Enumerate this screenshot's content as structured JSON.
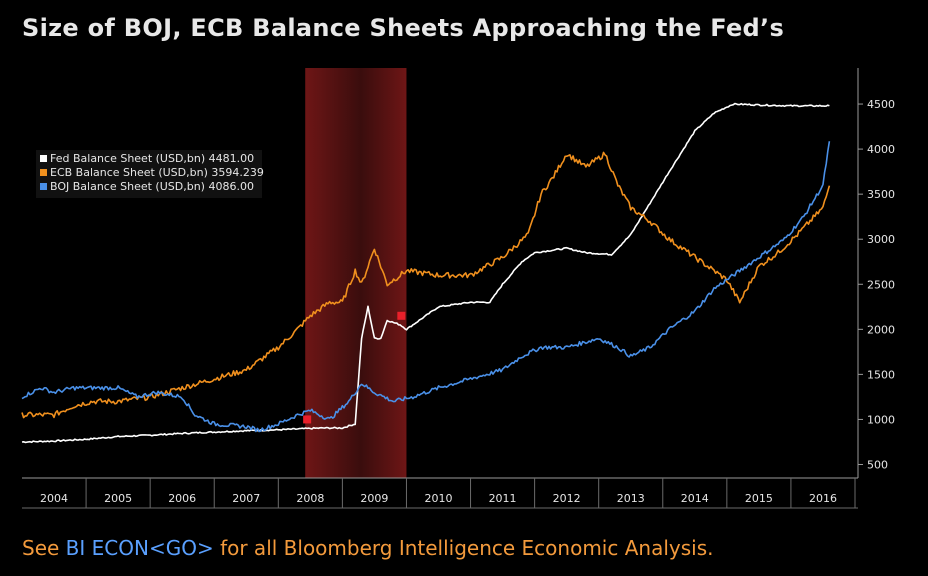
{
  "title": "Size of BOJ, ECB Balance Sheets Approaching the Fed’s",
  "footer": {
    "prefix": "See ",
    "command": "BI ECON<GO>",
    "suffix": " for all Bloomberg Intelligence Economic Analysis."
  },
  "colors": {
    "background": "#000000",
    "fed": "#ffffff",
    "ecb": "#f0901e",
    "boj": "#4a90e8",
    "recession": "#7a1a1a",
    "marker": "#e8202a"
  },
  "chart_data": {
    "type": "line",
    "x_tick_labels": [
      "2004",
      "2005",
      "2006",
      "2007",
      "2008",
      "2009",
      "2010",
      "2011",
      "2012",
      "2013",
      "2014",
      "2015",
      "2016"
    ],
    "y_ticks": [
      500,
      1000,
      1500,
      2000,
      2500,
      3000,
      3500,
      4000,
      4500
    ],
    "ylim": [
      350,
      4900
    ],
    "xlim": [
      2003.5,
      2016.5
    ],
    "shaded_region": [
      2007.92,
      2009.5
    ],
    "markers": [
      [
        2007.95,
        1000
      ],
      [
        2009.42,
        2150
      ]
    ],
    "legend_position": "top-left",
    "series": [
      {
        "name": "Fed Balance Sheet (USD,bn)",
        "last_value": "4481.00",
        "color": "#ffffff",
        "points": [
          [
            2003.5,
            750
          ],
          [
            2004,
            760
          ],
          [
            2004.5,
            780
          ],
          [
            2005,
            810
          ],
          [
            2005.5,
            825
          ],
          [
            2006,
            845
          ],
          [
            2006.5,
            860
          ],
          [
            2007,
            875
          ],
          [
            2007.5,
            885
          ],
          [
            2008,
            900
          ],
          [
            2008.2,
            905
          ],
          [
            2008.5,
            905
          ],
          [
            2008.7,
            950
          ],
          [
            2008.8,
            1900
          ],
          [
            2008.9,
            2250
          ],
          [
            2009.0,
            1900
          ],
          [
            2009.1,
            1900
          ],
          [
            2009.2,
            2100
          ],
          [
            2009.4,
            2050
          ],
          [
            2009.5,
            2000
          ],
          [
            2009.8,
            2150
          ],
          [
            2010,
            2250
          ],
          [
            2010.5,
            2300
          ],
          [
            2010.8,
            2300
          ],
          [
            2011,
            2500
          ],
          [
            2011.3,
            2750
          ],
          [
            2011.5,
            2850
          ],
          [
            2012,
            2900
          ],
          [
            2012.3,
            2850
          ],
          [
            2012.7,
            2830
          ],
          [
            2013,
            3050
          ],
          [
            2013.3,
            3400
          ],
          [
            2013.6,
            3750
          ],
          [
            2014,
            4200
          ],
          [
            2014.3,
            4400
          ],
          [
            2014.6,
            4500
          ],
          [
            2015,
            4490
          ],
          [
            2015.5,
            4480
          ],
          [
            2016,
            4480
          ],
          [
            2016.1,
            4481
          ]
        ]
      },
      {
        "name": "ECB Balance Sheet (USD,bn)",
        "last_value": "3594.239",
        "color": "#f0901e",
        "points": [
          [
            2003.5,
            1050
          ],
          [
            2004,
            1050
          ],
          [
            2004.3,
            1150
          ],
          [
            2004.6,
            1200
          ],
          [
            2005,
            1200
          ],
          [
            2005.5,
            1250
          ],
          [
            2006,
            1350
          ],
          [
            2006.5,
            1450
          ],
          [
            2007,
            1550
          ],
          [
            2007.5,
            1800
          ],
          [
            2007.8,
            2000
          ],
          [
            2008,
            2150
          ],
          [
            2008.3,
            2300
          ],
          [
            2008.5,
            2300
          ],
          [
            2008.7,
            2650
          ],
          [
            2008.8,
            2500
          ],
          [
            2009,
            2900
          ],
          [
            2009.2,
            2500
          ],
          [
            2009.4,
            2600
          ],
          [
            2009.5,
            2650
          ],
          [
            2010,
            2600
          ],
          [
            2010.5,
            2600
          ],
          [
            2011,
            2800
          ],
          [
            2011.4,
            3050
          ],
          [
            2011.6,
            3500
          ],
          [
            2011.8,
            3700
          ],
          [
            2012,
            3950
          ],
          [
            2012.3,
            3800
          ],
          [
            2012.6,
            3950
          ],
          [
            2012.8,
            3600
          ],
          [
            2013,
            3350
          ],
          [
            2013.3,
            3200
          ],
          [
            2013.6,
            3000
          ],
          [
            2014,
            2800
          ],
          [
            2014.3,
            2650
          ],
          [
            2014.5,
            2550
          ],
          [
            2014.7,
            2300
          ],
          [
            2015,
            2700
          ],
          [
            2015.3,
            2850
          ],
          [
            2015.6,
            3050
          ],
          [
            2016,
            3350
          ],
          [
            2016.1,
            3594
          ]
        ]
      },
      {
        "name": "BOJ Balance Sheet (USD,bn)",
        "last_value": "4086.00",
        "color": "#4a90e8",
        "points": [
          [
            2003.5,
            1250
          ],
          [
            2003.8,
            1350
          ],
          [
            2004,
            1300
          ],
          [
            2004.3,
            1350
          ],
          [
            2004.6,
            1350
          ],
          [
            2005,
            1350
          ],
          [
            2005.3,
            1250
          ],
          [
            2005.6,
            1300
          ],
          [
            2006,
            1250
          ],
          [
            2006.2,
            1050
          ],
          [
            2006.5,
            950
          ],
          [
            2007,
            920
          ],
          [
            2007.2,
            880
          ],
          [
            2007.5,
            950
          ],
          [
            2007.8,
            1050
          ],
          [
            2008,
            1100
          ],
          [
            2008.3,
            1000
          ],
          [
            2008.6,
            1200
          ],
          [
            2008.8,
            1400
          ],
          [
            2009,
            1300
          ],
          [
            2009.3,
            1200
          ],
          [
            2009.6,
            1250
          ],
          [
            2010,
            1350
          ],
          [
            2010.5,
            1450
          ],
          [
            2011,
            1550
          ],
          [
            2011.3,
            1700
          ],
          [
            2011.6,
            1800
          ],
          [
            2012,
            1800
          ],
          [
            2012.5,
            1900
          ],
          [
            2012.8,
            1800
          ],
          [
            2013,
            1700
          ],
          [
            2013.3,
            1800
          ],
          [
            2013.6,
            2000
          ],
          [
            2014,
            2200
          ],
          [
            2014.3,
            2450
          ],
          [
            2014.6,
            2600
          ],
          [
            2015,
            2800
          ],
          [
            2015.4,
            3000
          ],
          [
            2015.7,
            3250
          ],
          [
            2016,
            3600
          ],
          [
            2016.1,
            4086
          ]
        ]
      }
    ]
  }
}
